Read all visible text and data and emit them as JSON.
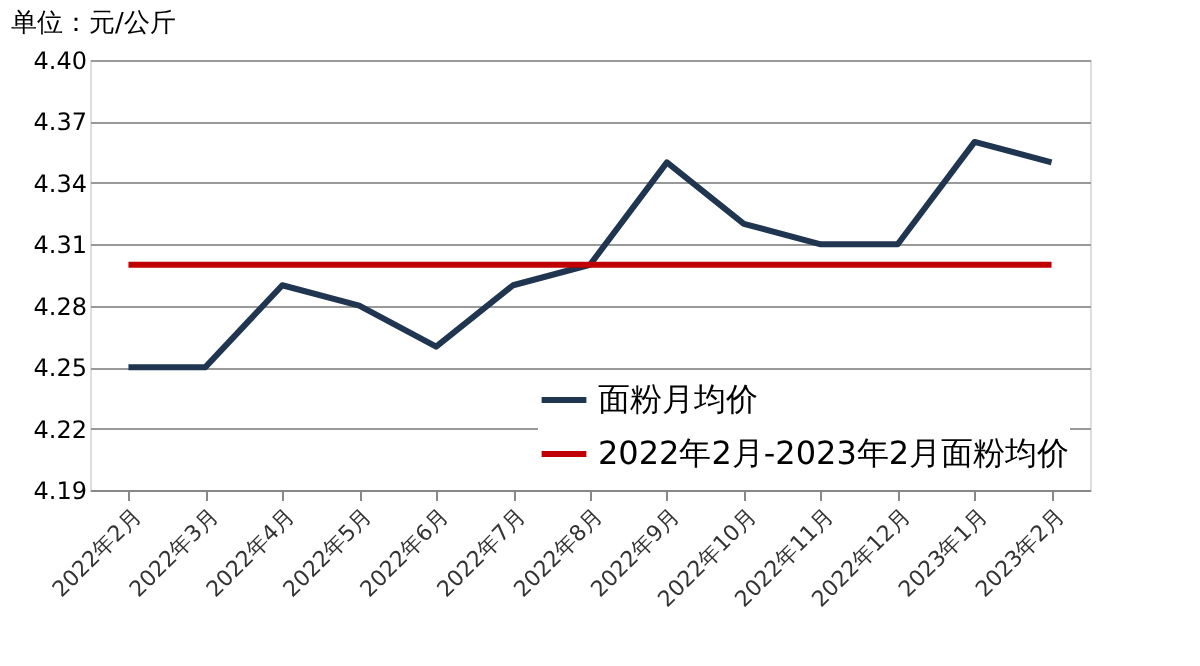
{
  "chart_data": {
    "type": "line",
    "ylabel": "单位：元/公斤",
    "categories": [
      "2022年2月",
      "2022年3月",
      "2022年4月",
      "2022年5月",
      "2022年6月",
      "2022年7月",
      "2022年8月",
      "2022年9月",
      "2022年10月",
      "2022年11月",
      "2022年12月",
      "2023年1月",
      "2023年2月"
    ],
    "series": [
      {
        "name": "面粉月均价",
        "color": "#1f3550",
        "values": [
          4.25,
          4.25,
          4.29,
          4.28,
          4.26,
          4.29,
          4.3,
          4.35,
          4.32,
          4.31,
          4.31,
          4.36,
          4.35
        ]
      },
      {
        "name": "2022年2月-2023年2月面粉均价",
        "color": "#c00000",
        "values": [
          4.3,
          4.3,
          4.3,
          4.3,
          4.3,
          4.3,
          4.3,
          4.3,
          4.3,
          4.3,
          4.3,
          4.3,
          4.3
        ]
      }
    ],
    "ylim": [
      4.19,
      4.4
    ],
    "yticks": [
      4.19,
      4.22,
      4.25,
      4.28,
      4.31,
      4.34,
      4.37,
      {
        "value": 4.4,
        "label": "4.40"
      }
    ],
    "grid": "y",
    "legend": "bottom right",
    "marker": "none",
    "line_style": "solid"
  }
}
